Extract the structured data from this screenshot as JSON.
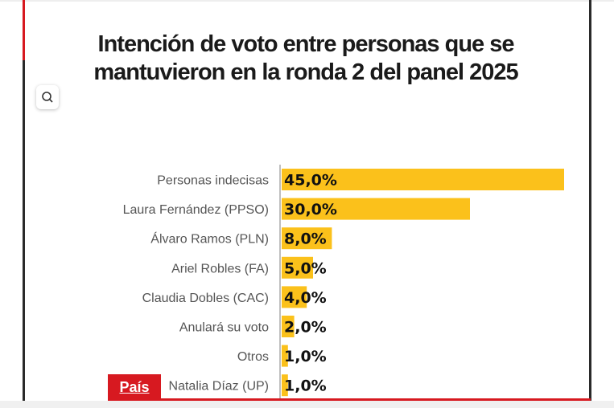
{
  "chart_data": {
    "type": "bar",
    "orientation": "horizontal",
    "title": "Intención de voto entre personas que se mantuvieron en la ronda 2 del panel 2025",
    "categories": [
      "Personas indecisas",
      "Laura Fernández (PPSO)",
      "Álvaro Ramos (PLN)",
      "Ariel Robles (FA)",
      "Claudia Dobles (CAC)",
      "Anulará su voto",
      "Otros",
      "Natalia Díaz (UP)"
    ],
    "values": [
      45.0,
      30.0,
      8.0,
      5.0,
      4.0,
      2.0,
      1.0,
      1.0
    ],
    "data_labels": [
      "45,0%",
      "30,0%",
      "8,0%",
      "5,0%",
      "4,0%",
      "2,0%",
      "1,0%",
      "1,0%"
    ],
    "xlim": [
      0,
      45
    ],
    "grid": false,
    "bar_color": "#fbc11b"
  },
  "section_tab": {
    "label": "País",
    "color": "#d71920"
  },
  "search_button": {
    "icon": "search-icon"
  }
}
